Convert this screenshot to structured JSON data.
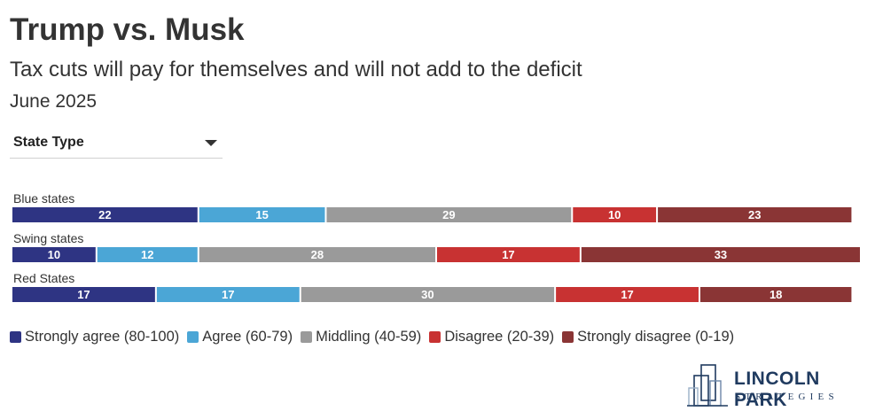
{
  "header": {
    "title": "Trump vs. Musk",
    "subtitle": "Tax cuts will pay for themselves and will not add to the deficit",
    "date": "June 2025"
  },
  "filter": {
    "label": "State Type"
  },
  "chart_data": {
    "type": "bar",
    "orientation": "horizontal",
    "stacked": true,
    "normalized": "percent",
    "categories": [
      "Blue states",
      "Swing states",
      "Red States"
    ],
    "series": [
      {
        "name": "Strongly agree (80-100)",
        "color": "#2e3483",
        "values": [
          22,
          10,
          17
        ]
      },
      {
        "name": "Agree (60-79)",
        "color": "#4ba6d6",
        "values": [
          15,
          12,
          17
        ]
      },
      {
        "name": "Middling (40-59)",
        "color": "#9a9a9a",
        "values": [
          29,
          28,
          30
        ]
      },
      {
        "name": "Disagree (20-39)",
        "color": "#c83232",
        "values": [
          10,
          17,
          17
        ]
      },
      {
        "name": "Strongly disagree (0-19)",
        "color": "#8a3535",
        "values": [
          23,
          33,
          18
        ]
      }
    ],
    "legend_position": "bottom",
    "grid": false
  },
  "logo": {
    "name": "LINCOLN PARK",
    "tagline": "STRATEGIES"
  }
}
